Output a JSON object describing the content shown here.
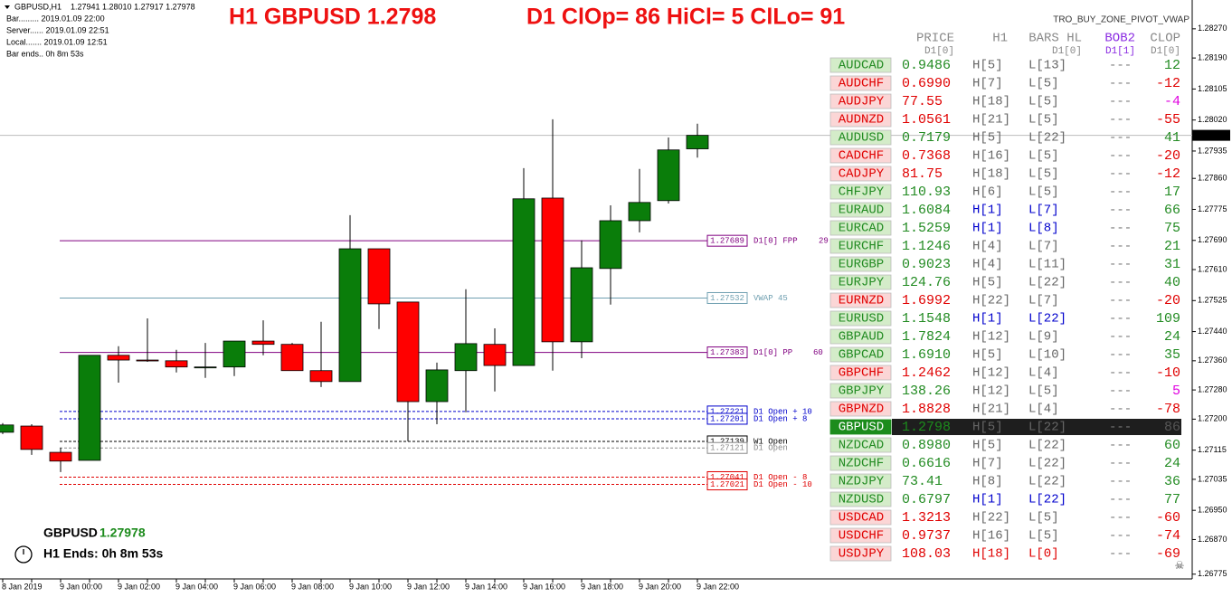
{
  "header": {
    "symbol": "GBPUSD,H1",
    "ohlc": "1.27941 1.28010 1.27917 1.27978",
    "info": [
      "Bar......... 2019.01.09 22:00",
      "Server...... 2019.01.09 22:51",
      "Local....... 2019.01.09 12:51",
      "Bar ends.. 0h 8m 53s"
    ],
    "title": "H1 GBPUSD 1.2798",
    "subtitle": "D1 ClOp= 86 HiCl= 5 ClLo= 91",
    "indicator": "TRO_BUY_ZONE_PIVOT_VWAP"
  },
  "footer": {
    "symbol": "GBPUSD",
    "timer": "H1 Ends: 0h 8m 53s"
  },
  "chart_data": {
    "type": "candlestick",
    "categories": [
      "8 Jan 2019",
      null,
      "9 Jan 00:00",
      null,
      "9 Jan 02:00",
      null,
      "9 Jan 04:00",
      null,
      "9 Jan 06:00",
      null,
      "9 Jan 08:00",
      null,
      "9 Jan 10:00",
      null,
      "9 Jan 12:00",
      null,
      "9 Jan 14:00",
      null,
      "9 Jan 16:00",
      null,
      "9 Jan 18:00",
      null,
      "9 Jan 20:00",
      null,
      "9 Jan 22:00"
    ],
    "open": [
      1.27164,
      1.27181,
      1.27109,
      1.27087,
      1.27375,
      1.27362,
      1.2736,
      1.27343,
      1.27343,
      1.27414,
      1.27405,
      1.27333,
      1.27303,
      1.27667,
      1.27521,
      1.27248,
      1.27333,
      1.27405,
      1.27347,
      1.27806,
      1.27412,
      1.27613,
      1.27744,
      1.27799,
      1.27941
    ],
    "high": [
      1.27189,
      1.27186,
      1.27122,
      1.27375,
      1.274,
      1.27476,
      1.2739,
      1.27409,
      1.27414,
      1.27471,
      1.27409,
      1.27467,
      1.27759,
      1.27667,
      1.27521,
      1.27355,
      1.27556,
      1.27449,
      1.27888,
      1.28022,
      1.2769,
      1.27786,
      1.27886,
      1.27972,
      1.2801
    ],
    "low": [
      1.27159,
      1.27102,
      1.27055,
      1.27087,
      1.273,
      1.27357,
      1.27328,
      1.27313,
      1.27318,
      1.27375,
      1.27333,
      1.27288,
      1.27303,
      1.27447,
      1.27139,
      1.27186,
      1.27219,
      1.27276,
      1.27347,
      1.27333,
      1.27367,
      1.27514,
      1.27712,
      1.27791,
      1.27917
    ],
    "close": [
      1.27184,
      1.27117,
      1.27085,
      1.27375,
      1.27362,
      1.2736,
      1.27343,
      1.27343,
      1.27414,
      1.27405,
      1.27333,
      1.27303,
      1.27667,
      1.27516,
      1.27248,
      1.27335,
      1.27407,
      1.27347,
      1.27804,
      1.27412,
      1.27615,
      1.27744,
      1.27794,
      1.27938,
      1.27978
    ],
    "up_color": "#0a7d0a",
    "down_color": "#ff0000",
    "ylim": [
      1.26762,
      1.28349
    ],
    "yticks": [
      {
        "value": 1.2827,
        "label": "1.28270"
      },
      {
        "value": 1.2819,
        "label": "1.28190"
      },
      1.28105,
      {
        "value": 1.2802,
        "label": "1.28020"
      },
      1.27935,
      {
        "value": 1.2786,
        "label": "1.27860"
      },
      1.27775,
      {
        "value": 1.2769,
        "label": "1.27690"
      },
      {
        "value": 1.2761,
        "label": "1.27610"
      },
      1.27525,
      {
        "value": 1.2744,
        "label": "1.27440"
      },
      {
        "value": 1.2736,
        "label": "1.27360"
      },
      {
        "value": 1.2728,
        "label": "1.27280"
      },
      {
        "value": 1.272,
        "label": "1.27200"
      },
      1.27115,
      1.27035,
      {
        "value": 1.2695,
        "label": "1.26950"
      },
      {
        "value": 1.2687,
        "label": "1.26870"
      },
      1.26775
    ],
    "levels": [
      {
        "name": "D1[0] FPP",
        "value": 1.27689,
        "note": "29",
        "color": "#800080",
        "dashed": false
      },
      {
        "name": "VWAP 45",
        "value": 1.27532,
        "color": "#6f9fb0",
        "dashed": false
      },
      {
        "name": "D1[0] PP",
        "value": 1.27383,
        "note": "60",
        "color": "#800080",
        "dashed": false
      },
      {
        "name": "D1 Open + 10",
        "value": 1.27221,
        "color": "#0000cc",
        "dashed": true
      },
      {
        "name": "D1 Open + 8",
        "value": 1.27201,
        "color": "#0000cc",
        "dashed": true
      },
      {
        "name": "W1 Open",
        "value": 1.27139,
        "color": "#000000",
        "dashed": true
      },
      {
        "name": "D1 Open",
        "value": 1.27121,
        "color": "#888888",
        "dashed": true
      },
      {
        "name": "D1 Open - 8",
        "value": 1.27041,
        "color": "#e00000",
        "dashed": true
      },
      {
        "name": "D1 Open - 10",
        "value": 1.27021,
        "color": "#e00000",
        "dashed": true
      }
    ]
  },
  "table": {
    "headers": [
      {
        "title": "PRICE",
        "sub": "D1[0]"
      },
      {
        "title": "H1"
      },
      {
        "title": "BARS HL",
        "sub": "D1[0]"
      },
      {
        "title": "BOB2",
        "sub": "D1[1]"
      },
      {
        "title": "CLOP",
        "sub": "D1[0]"
      }
    ],
    "rows": [
      {
        "pair": "AUDCAD",
        "price": "0.9486",
        "h": "H[5]",
        "l": "L[13]",
        "bob": "---",
        "clop": "12",
        "color": "#228b22",
        "h_color": "#666666",
        "l_color": "#666666",
        "clop_color": "#228b22"
      },
      {
        "pair": "AUDCHF",
        "price": "0.6990",
        "h": "H[7]",
        "l": "L[5]",
        "bob": "---",
        "clop": "-12",
        "color": "#e00000",
        "h_color": "#666666",
        "l_color": "#666666",
        "clop_color": "#e00000"
      },
      {
        "pair": "AUDJPY",
        "price": "77.55",
        "h": "H[18]",
        "l": "L[5]",
        "bob": "---",
        "clop": "-4",
        "color": "#e00000",
        "h_color": "#666666",
        "l_color": "#666666",
        "clop_color": "#e000e0"
      },
      {
        "pair": "AUDNZD",
        "price": "1.0561",
        "h": "H[21]",
        "l": "L[5]",
        "bob": "---",
        "clop": "-55",
        "color": "#e00000",
        "h_color": "#666666",
        "l_color": "#666666",
        "clop_color": "#e00000"
      },
      {
        "pair": "AUDUSD",
        "price": "0.7179",
        "h": "H[5]",
        "l": "L[22]",
        "bob": "---",
        "clop": "41",
        "color": "#228b22",
        "h_color": "#666666",
        "l_color": "#666666",
        "clop_color": "#228b22"
      },
      {
        "pair": "CADCHF",
        "price": "0.7368",
        "h": "H[16]",
        "l": "L[5]",
        "bob": "---",
        "clop": "-20",
        "color": "#e00000",
        "h_color": "#666666",
        "l_color": "#666666",
        "clop_color": "#e00000"
      },
      {
        "pair": "CADJPY",
        "price": "81.75",
        "h": "H[18]",
        "l": "L[5]",
        "bob": "---",
        "clop": "-12",
        "color": "#e00000",
        "h_color": "#666666",
        "l_color": "#666666",
        "clop_color": "#e00000"
      },
      {
        "pair": "CHFJPY",
        "price": "110.93",
        "h": "H[6]",
        "l": "L[5]",
        "bob": "---",
        "clop": "17",
        "color": "#228b22",
        "h_color": "#666666",
        "l_color": "#666666",
        "clop_color": "#228b22"
      },
      {
        "pair": "EURAUD",
        "price": "1.6084",
        "h": "H[1]",
        "l": "L[7]",
        "bob": "---",
        "clop": "66",
        "color": "#228b22",
        "h_color": "#0000cc",
        "l_color": "#0000cc",
        "clop_color": "#228b22"
      },
      {
        "pair": "EURCAD",
        "price": "1.5259",
        "h": "H[1]",
        "l": "L[8]",
        "bob": "---",
        "clop": "75",
        "color": "#228b22",
        "h_color": "#0000cc",
        "l_color": "#0000cc",
        "clop_color": "#228b22"
      },
      {
        "pair": "EURCHF",
        "price": "1.1246",
        "h": "H[4]",
        "l": "L[7]",
        "bob": "---",
        "clop": "21",
        "color": "#228b22",
        "h_color": "#666666",
        "l_color": "#666666",
        "clop_color": "#228b22"
      },
      {
        "pair": "EURGBP",
        "price": "0.9023",
        "h": "H[4]",
        "l": "L[11]",
        "bob": "---",
        "clop": "31",
        "color": "#228b22",
        "h_color": "#666666",
        "l_color": "#666666",
        "clop_color": "#228b22"
      },
      {
        "pair": "EURJPY",
        "price": "124.76",
        "h": "H[5]",
        "l": "L[22]",
        "bob": "---",
        "clop": "40",
        "color": "#228b22",
        "h_color": "#666666",
        "l_color": "#666666",
        "clop_color": "#228b22"
      },
      {
        "pair": "EURNZD",
        "price": "1.6992",
        "h": "H[22]",
        "l": "L[7]",
        "bob": "---",
        "clop": "-20",
        "color": "#e00000",
        "h_color": "#666666",
        "l_color": "#666666",
        "clop_color": "#e00000"
      },
      {
        "pair": "EURUSD",
        "price": "1.1548",
        "h": "H[1]",
        "l": "L[22]",
        "bob": "---",
        "clop": "109",
        "color": "#228b22",
        "h_color": "#0000cc",
        "l_color": "#0000cc",
        "clop_color": "#228b22"
      },
      {
        "pair": "GBPAUD",
        "price": "1.7824",
        "h": "H[12]",
        "l": "L[9]",
        "bob": "---",
        "clop": "24",
        "color": "#228b22",
        "h_color": "#666666",
        "l_color": "#666666",
        "clop_color": "#228b22"
      },
      {
        "pair": "GBPCAD",
        "price": "1.6910",
        "h": "H[5]",
        "l": "L[10]",
        "bob": "---",
        "clop": "35",
        "color": "#228b22",
        "h_color": "#666666",
        "l_color": "#666666",
        "clop_color": "#228b22"
      },
      {
        "pair": "GBPCHF",
        "price": "1.2462",
        "h": "H[12]",
        "l": "L[4]",
        "bob": "---",
        "clop": "-10",
        "color": "#e00000",
        "h_color": "#666666",
        "l_color": "#666666",
        "clop_color": "#e00000"
      },
      {
        "pair": "GBPJPY",
        "price": "138.26",
        "h": "H[12]",
        "l": "L[5]",
        "bob": "---",
        "clop": "5",
        "color": "#228b22",
        "h_color": "#666666",
        "l_color": "#666666",
        "clop_color": "#e000e0"
      },
      {
        "pair": "GBPNZD",
        "price": "1.8828",
        "h": "H[21]",
        "l": "L[4]",
        "bob": "---",
        "clop": "-78",
        "color": "#e00000",
        "h_color": "#666666",
        "l_color": "#666666",
        "clop_color": "#e00000"
      },
      {
        "pair": "GBPUSD",
        "price": "1.2798",
        "h": "H[5]",
        "l": "L[22]",
        "bob": "---",
        "clop": "86",
        "color": "#228b22",
        "h_color": "#666666",
        "l_color": "#666666",
        "clop_color": "#555555",
        "highlight": true
      },
      {
        "pair": "NZDCAD",
        "price": "0.8980",
        "h": "H[5]",
        "l": "L[22]",
        "bob": "---",
        "clop": "60",
        "color": "#228b22",
        "h_color": "#666666",
        "l_color": "#666666",
        "clop_color": "#228b22"
      },
      {
        "pair": "NZDCHF",
        "price": "0.6616",
        "h": "H[7]",
        "l": "L[22]",
        "bob": "---",
        "clop": "24",
        "color": "#228b22",
        "h_color": "#666666",
        "l_color": "#666666",
        "clop_color": "#228b22"
      },
      {
        "pair": "NZDJPY",
        "price": "73.41",
        "h": "H[8]",
        "l": "L[22]",
        "bob": "---",
        "clop": "36",
        "color": "#228b22",
        "h_color": "#666666",
        "l_color": "#666666",
        "clop_color": "#228b22"
      },
      {
        "pair": "NZDUSD",
        "price": "0.6797",
        "h": "H[1]",
        "l": "L[22]",
        "bob": "---",
        "clop": "77",
        "color": "#228b22",
        "h_color": "#0000cc",
        "l_color": "#0000cc",
        "clop_color": "#228b22"
      },
      {
        "pair": "USDCAD",
        "price": "1.3213",
        "h": "H[22]",
        "l": "L[5]",
        "bob": "---",
        "clop": "-60",
        "color": "#e00000",
        "h_color": "#666666",
        "l_color": "#666666",
        "clop_color": "#e00000"
      },
      {
        "pair": "USDCHF",
        "price": "0.9737",
        "h": "H[16]",
        "l": "L[5]",
        "bob": "---",
        "clop": "-74",
        "color": "#e00000",
        "h_color": "#666666",
        "l_color": "#666666",
        "clop_color": "#e00000"
      },
      {
        "pair": "USDJPY",
        "price": "108.03",
        "h": "H[18]",
        "l": "L[0]",
        "bob": "---",
        "clop": "-69",
        "color": "#e00000",
        "h_color": "#e00000",
        "l_color": "#e00000",
        "clop_color": "#e00000"
      }
    ]
  }
}
